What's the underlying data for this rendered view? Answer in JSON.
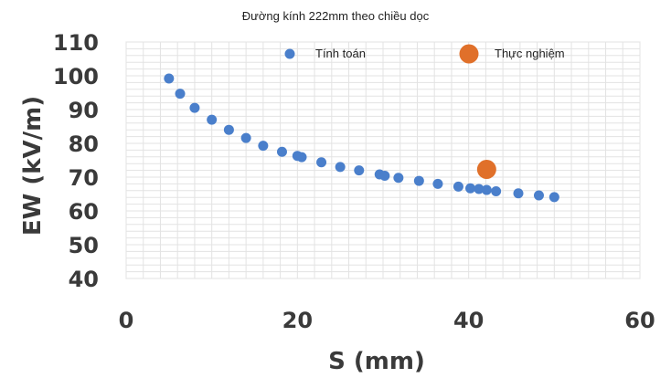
{
  "chart_data": {
    "type": "scatter",
    "title": "Đường kính 222mm theo chiều dọc",
    "xlabel": "S (mm)",
    "ylabel": "EW (kV/m)",
    "xlim": [
      0,
      60
    ],
    "ylim": [
      40,
      110
    ],
    "xticks": [
      "0",
      "20",
      "40",
      "60"
    ],
    "yticks": [
      "40",
      "50",
      "60",
      "70",
      "80",
      "90",
      "100",
      "110"
    ],
    "grid": true,
    "legend_position": "top-right",
    "series": [
      {
        "name": "Tính toán",
        "color": "#4a7fcb",
        "points": [
          [
            5,
            99.2
          ],
          [
            6.3,
            94.7
          ],
          [
            8,
            90.5
          ],
          [
            10,
            87.0
          ],
          [
            12,
            84.0
          ],
          [
            14,
            81.6
          ],
          [
            16,
            79.3
          ],
          [
            18.2,
            77.5
          ],
          [
            20,
            76.3
          ],
          [
            20.5,
            75.9
          ],
          [
            22.8,
            74.4
          ],
          [
            25,
            73.0
          ],
          [
            27.2,
            72.0
          ],
          [
            29.6,
            70.8
          ],
          [
            30.2,
            70.4
          ],
          [
            31.8,
            69.8
          ],
          [
            34.2,
            68.9
          ],
          [
            36.4,
            68.0
          ],
          [
            38.8,
            67.2
          ],
          [
            40.2,
            66.7
          ],
          [
            41.2,
            66.5
          ],
          [
            42.1,
            66.2
          ],
          [
            43.2,
            65.8
          ],
          [
            45.8,
            65.2
          ],
          [
            48.2,
            64.6
          ],
          [
            50,
            64.1
          ]
        ]
      },
      {
        "name": "Thực nghiệm",
        "color": "#e0702a",
        "points": [
          [
            42.1,
            72.3
          ]
        ]
      }
    ]
  }
}
